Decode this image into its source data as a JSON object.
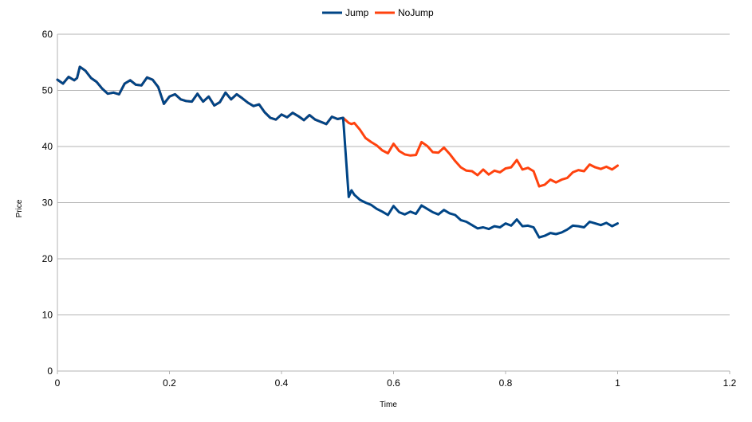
{
  "chart_data": {
    "type": "line",
    "title": "",
    "xlabel": "Time",
    "ylabel": "Price",
    "xlim": [
      0,
      1.2
    ],
    "ylim": [
      0,
      60
    ],
    "x_ticks": [
      "0",
      "0.2",
      "0.4",
      "0.6",
      "0.8",
      "1",
      "1.2"
    ],
    "y_ticks": [
      "0",
      "10",
      "20",
      "30",
      "40",
      "50",
      "60"
    ],
    "grid": "horizontal",
    "legend_position": "top",
    "series": [
      {
        "name": "Jump",
        "color": "#004586",
        "x": [
          0,
          0.01,
          0.02,
          0.03,
          0.035,
          0.04,
          0.05,
          0.06,
          0.07,
          0.08,
          0.09,
          0.1,
          0.11,
          0.12,
          0.13,
          0.14,
          0.15,
          0.16,
          0.17,
          0.18,
          0.19,
          0.2,
          0.21,
          0.22,
          0.23,
          0.24,
          0.25,
          0.26,
          0.27,
          0.28,
          0.29,
          0.3,
          0.31,
          0.32,
          0.33,
          0.34,
          0.35,
          0.36,
          0.37,
          0.38,
          0.39,
          0.4,
          0.41,
          0.42,
          0.43,
          0.44,
          0.45,
          0.46,
          0.47,
          0.48,
          0.49,
          0.5,
          0.51,
          0.52,
          0.525,
          0.53,
          0.54,
          0.55,
          0.56,
          0.57,
          0.58,
          0.59,
          0.6,
          0.61,
          0.62,
          0.63,
          0.64,
          0.65,
          0.66,
          0.67,
          0.68,
          0.69,
          0.7,
          0.71,
          0.72,
          0.73,
          0.74,
          0.75,
          0.76,
          0.77,
          0.78,
          0.79,
          0.8,
          0.81,
          0.82,
          0.83,
          0.84,
          0.85,
          0.86,
          0.87,
          0.88,
          0.89,
          0.9,
          0.91,
          0.92,
          0.93,
          0.94,
          0.95,
          0.96,
          0.97,
          0.98,
          0.99,
          1.0
        ],
        "values": [
          51.9,
          51.2,
          52.4,
          51.8,
          52.2,
          54.2,
          53.5,
          52.2,
          51.5,
          50.3,
          49.4,
          49.6,
          49.3,
          51.2,
          51.8,
          51.0,
          50.9,
          52.3,
          51.9,
          50.6,
          47.6,
          48.9,
          49.3,
          48.4,
          48.1,
          48.0,
          49.4,
          48.0,
          48.9,
          47.3,
          47.9,
          49.6,
          48.4,
          49.3,
          48.6,
          47.8,
          47.2,
          47.5,
          46.1,
          45.1,
          44.8,
          45.7,
          45.2,
          46.0,
          45.4,
          44.7,
          45.6,
          44.8,
          44.4,
          44.0,
          45.3,
          44.9,
          45.1,
          31.0,
          32.2,
          31.4,
          30.5,
          30.0,
          29.6,
          28.9,
          28.4,
          27.8,
          29.4,
          28.3,
          27.9,
          28.4,
          28.0,
          29.5,
          28.9,
          28.3,
          27.9,
          28.7,
          28.1,
          27.8,
          26.9,
          26.6,
          26.0,
          25.4,
          25.6,
          25.3,
          25.8,
          25.6,
          26.3,
          25.9,
          27.0,
          25.8,
          25.9,
          25.6,
          23.8,
          24.1,
          24.6,
          24.4,
          24.7,
          25.2,
          25.9,
          25.8,
          25.6,
          26.6,
          26.3,
          26.0,
          26.4,
          25.8,
          26.3
        ]
      },
      {
        "name": "NoJump",
        "color": "#ff420e",
        "x": [
          0,
          0.01,
          0.02,
          0.03,
          0.035,
          0.04,
          0.05,
          0.06,
          0.07,
          0.08,
          0.09,
          0.1,
          0.11,
          0.12,
          0.13,
          0.14,
          0.15,
          0.16,
          0.17,
          0.18,
          0.19,
          0.2,
          0.21,
          0.22,
          0.23,
          0.24,
          0.25,
          0.26,
          0.27,
          0.28,
          0.29,
          0.3,
          0.31,
          0.32,
          0.33,
          0.34,
          0.35,
          0.36,
          0.37,
          0.38,
          0.39,
          0.4,
          0.41,
          0.42,
          0.43,
          0.44,
          0.45,
          0.46,
          0.47,
          0.48,
          0.49,
          0.5,
          0.51,
          0.52,
          0.525,
          0.53,
          0.54,
          0.55,
          0.56,
          0.57,
          0.58,
          0.59,
          0.6,
          0.61,
          0.62,
          0.63,
          0.64,
          0.65,
          0.66,
          0.67,
          0.68,
          0.69,
          0.7,
          0.71,
          0.72,
          0.73,
          0.74,
          0.75,
          0.76,
          0.77,
          0.78,
          0.79,
          0.8,
          0.81,
          0.82,
          0.83,
          0.84,
          0.85,
          0.86,
          0.87,
          0.88,
          0.89,
          0.9,
          0.91,
          0.92,
          0.93,
          0.94,
          0.95,
          0.96,
          0.97,
          0.98,
          0.99,
          1.0
        ],
        "values": [
          51.9,
          51.2,
          52.4,
          51.8,
          52.2,
          54.2,
          53.5,
          52.2,
          51.5,
          50.3,
          49.4,
          49.6,
          49.3,
          51.2,
          51.8,
          51.0,
          50.9,
          52.3,
          51.9,
          50.6,
          47.6,
          48.9,
          49.3,
          48.4,
          48.1,
          48.0,
          49.4,
          48.0,
          48.9,
          47.3,
          47.9,
          49.6,
          48.4,
          49.3,
          48.6,
          47.8,
          47.2,
          47.5,
          46.1,
          45.1,
          44.8,
          45.7,
          45.2,
          46.0,
          45.4,
          44.7,
          45.6,
          44.8,
          44.4,
          44.0,
          45.3,
          44.9,
          45.1,
          44.2,
          44.0,
          44.2,
          43.0,
          41.5,
          40.8,
          40.2,
          39.3,
          38.8,
          40.5,
          39.2,
          38.6,
          38.4,
          38.5,
          40.8,
          40.1,
          39.0,
          38.9,
          39.8,
          38.7,
          37.4,
          36.3,
          35.7,
          35.6,
          34.9,
          35.9,
          35.0,
          35.7,
          35.4,
          36.1,
          36.3,
          37.6,
          35.9,
          36.2,
          35.6,
          32.9,
          33.2,
          34.1,
          33.6,
          34.1,
          34.4,
          35.4,
          35.8,
          35.6,
          36.8,
          36.3,
          36.0,
          36.4,
          35.9,
          36.6
        ]
      }
    ]
  }
}
